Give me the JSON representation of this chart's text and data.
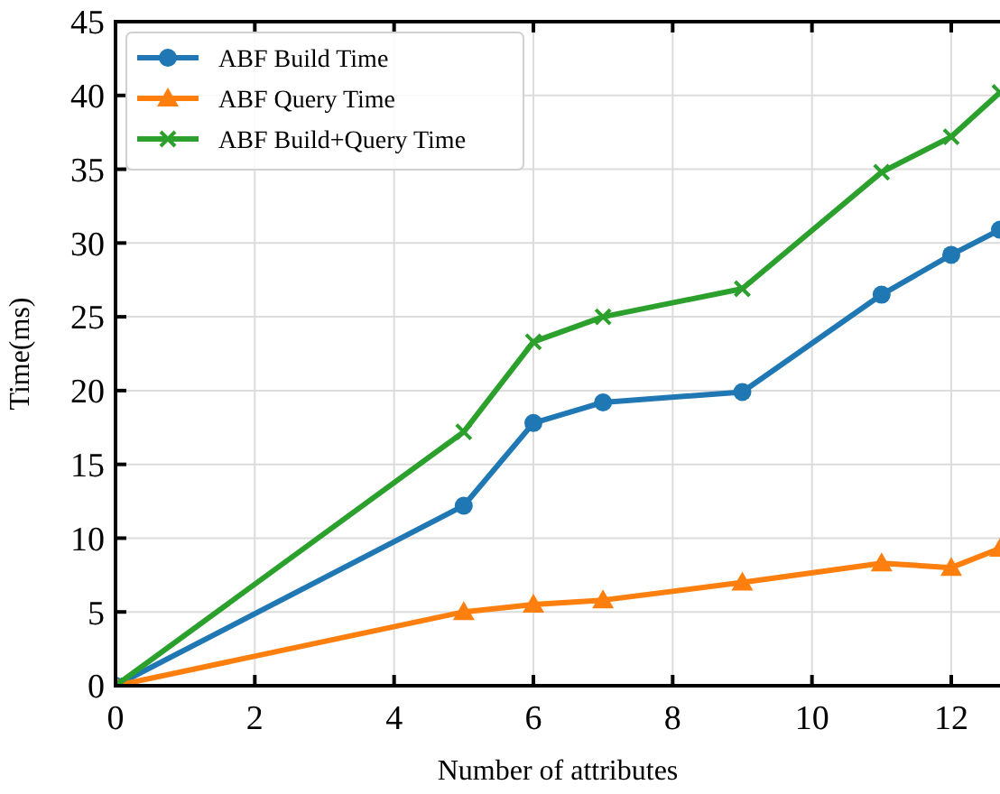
{
  "chart_data": {
    "type": "line",
    "xlabel": "Number of attributes",
    "ylabel": "Time(ms)",
    "x": [
      0,
      5,
      6,
      7,
      9,
      11,
      12,
      12.7
    ],
    "xlim": [
      0,
      12.7
    ],
    "ylim": [
      0,
      45
    ],
    "xticks": [
      0,
      2,
      4,
      6,
      8,
      10,
      12
    ],
    "yticks": [
      0,
      5,
      10,
      15,
      20,
      25,
      30,
      35,
      40,
      45
    ],
    "grid": true,
    "legend": "top left",
    "series": [
      {
        "name": "ABF Build Time",
        "color": "#1f77b4",
        "marker": "circle",
        "values": [
          0,
          12.2,
          17.8,
          19.2,
          19.9,
          26.5,
          29.2,
          30.9
        ]
      },
      {
        "name": "ABF Query Time",
        "color": "#ff7f0e",
        "marker": "triangle",
        "values": [
          0,
          5.0,
          5.5,
          5.8,
          7.0,
          8.3,
          8.0,
          9.3
        ]
      },
      {
        "name": "ABF Build+Query Time",
        "color": "#2ca02c",
        "marker": "cross",
        "values": [
          0,
          17.2,
          23.3,
          25.0,
          26.9,
          34.8,
          37.2,
          40.2
        ]
      }
    ]
  }
}
